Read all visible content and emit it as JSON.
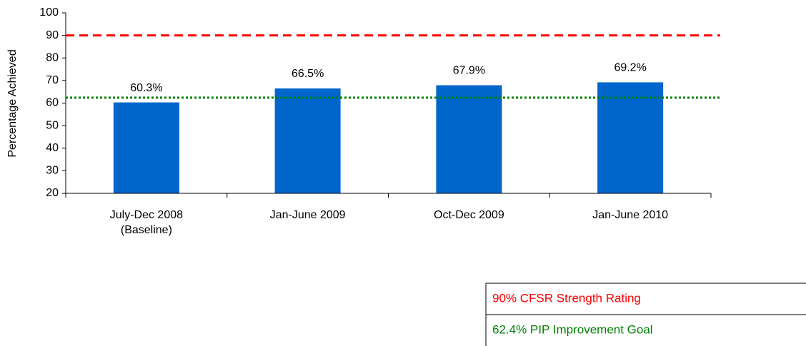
{
  "chart_data": {
    "type": "bar",
    "y_label": "Percentage Achieved",
    "categories": [
      "July-Dec 2008\n(Baseline)",
      "Jan-June 2009",
      "Oct-Dec 2009",
      "Jan-June 2010"
    ],
    "values": [
      60.3,
      66.5,
      67.9,
      69.2
    ],
    "value_labels": [
      "60.3%",
      "66.5%",
      "67.9%",
      "69.2%"
    ],
    "color": "#0066cc",
    "ylim": [
      20,
      100
    ],
    "yticks": [
      20,
      30,
      40,
      50,
      60,
      70,
      80,
      90,
      100
    ],
    "reference_lines": [
      {
        "value": 90,
        "color": "#ff0000",
        "style": "dashed",
        "label": "90% CFSR Strength Rating"
      },
      {
        "value": 62.4,
        "color": "#008000",
        "style": "dotted",
        "label": "62.4% PIP Improvement Goal"
      }
    ]
  }
}
